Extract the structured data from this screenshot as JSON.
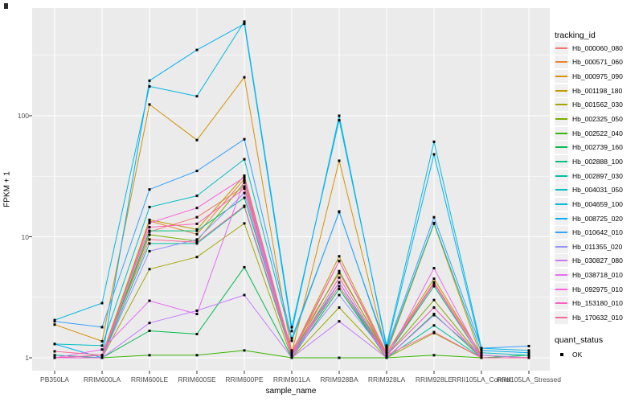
{
  "chart_data": {
    "type": "line",
    "title": "",
    "xlabel": "sample_name",
    "ylabel": "FPKM + 1",
    "y_scale": "log10",
    "y_ticks": [
      1,
      10,
      100
    ],
    "ylim_log": [
      -0.1,
      2.9
    ],
    "grid": "on",
    "panel_bg": "#EBEBEB",
    "grid_color": "#FFFFFF",
    "point_color": "#000000",
    "point_shape": "filled-square",
    "legend_position": "right",
    "categories": [
      "PB350LA",
      "RRIM600LA",
      "RRIM600LE",
      "RRIM600SE",
      "RRIM600PE",
      "RRIM901LA",
      "RRIM928BA",
      "RRIM928LA",
      "RRIM928LE",
      "RRII105LA_Control",
      "RRII105LA_Stressed"
    ],
    "series": [
      {
        "name": "Hb_000060_080",
        "color": "#F8766D",
        "values": [
          1.05,
          1.0,
          11,
          14.5,
          26,
          1.15,
          5.0,
          1.1,
          4.2,
          1.05,
          1.0
        ]
      },
      {
        "name": "Hb_000571_060",
        "color": "#EA8331",
        "values": [
          1.0,
          1.0,
          13.5,
          10.5,
          30,
          1.05,
          6.3,
          1.05,
          4.1,
          1.0,
          1.0
        ]
      },
      {
        "name": "Hb_000975_090",
        "color": "#D89000",
        "values": [
          1.88,
          1.37,
          124,
          63,
          208,
          1.1,
          42.5,
          1.1,
          12.8,
          1.0,
          1.0
        ]
      },
      {
        "name": "Hb_001198_180",
        "color": "#C09B00",
        "values": [
          1.0,
          1.05,
          13.8,
          11.5,
          32,
          1.1,
          6.9,
          1.1,
          4.5,
          1.05,
          1.0
        ]
      },
      {
        "name": "Hb_001562_030",
        "color": "#A3A500",
        "values": [
          1.0,
          1.0,
          5.4,
          6.8,
          12.9,
          1.0,
          2.6,
          1.0,
          1.6,
          1.0,
          1.0
        ]
      },
      {
        "name": "Hb_002325_050",
        "color": "#7CAE00",
        "values": [
          1.0,
          1.0,
          10.4,
          9.2,
          28,
          1.05,
          5.2,
          1.05,
          3.0,
          1.0,
          1.0
        ]
      },
      {
        "name": "Hb_002522_040",
        "color": "#39B600",
        "values": [
          1.0,
          1.0,
          1.05,
          1.05,
          1.15,
          1.0,
          1.0,
          1.0,
          1.05,
          1.0,
          1.0
        ]
      },
      {
        "name": "Hb_002739_160",
        "color": "#00BB4E",
        "values": [
          1.0,
          1.0,
          1.67,
          1.57,
          5.6,
          1.0,
          3.7,
          1.0,
          2.3,
          1.0,
          1.05
        ]
      },
      {
        "name": "Hb_002888_100",
        "color": "#00BF7D",
        "values": [
          1.0,
          1.0,
          11.2,
          11.2,
          21,
          1.1,
          4.2,
          1.05,
          3.9,
          1.0,
          1.0
        ]
      },
      {
        "name": "Hb_002897_030",
        "color": "#00C1A3",
        "values": [
          1.05,
          1.0,
          8.8,
          8.8,
          17.7,
          1.05,
          3.9,
          1.0,
          1.85,
          1.0,
          1.0
        ]
      },
      {
        "name": "Hb_004031_050",
        "color": "#00BFC4",
        "values": [
          1.3,
          1.26,
          17.6,
          21.8,
          43.7,
          1.38,
          16.2,
          1.15,
          13.0,
          1.1,
          1.05
        ]
      },
      {
        "name": "Hb_004659_100",
        "color": "#00BAE0",
        "values": [
          2.05,
          2.83,
          175,
          145,
          600,
          1.79,
          92,
          1.26,
          61,
          1.2,
          1.15
        ]
      },
      {
        "name": "Hb_008725_020",
        "color": "#00B0F6",
        "values": [
          1.3,
          1.0,
          195,
          350,
          575,
          1.66,
          100,
          1.2,
          48,
          1.15,
          1.1
        ]
      },
      {
        "name": "Hb_010642_010",
        "color": "#35A2FF",
        "values": [
          2.0,
          1.79,
          24.6,
          35,
          64,
          1.45,
          16.0,
          1.2,
          14.5,
          1.2,
          1.25
        ]
      },
      {
        "name": "Hb_011355_020",
        "color": "#9590FF",
        "values": [
          1.0,
          1.0,
          7.6,
          9.5,
          23,
          1.05,
          3.3,
          1.05,
          2.6,
          1.0,
          1.0
        ]
      },
      {
        "name": "Hb_030827_080",
        "color": "#C77CFF",
        "values": [
          1.0,
          1.0,
          1.94,
          2.45,
          3.3,
          1.0,
          2.0,
          1.0,
          2.25,
          1.05,
          1.0
        ]
      },
      {
        "name": "Hb_038718_010",
        "color": "#E76BF3",
        "values": [
          1.0,
          1.17,
          2.96,
          2.3,
          29,
          1.0,
          4.2,
          1.0,
          5.5,
          1.0,
          1.0
        ]
      },
      {
        "name": "Hb_092975_010",
        "color": "#FA62DB",
        "values": [
          1.0,
          1.0,
          13.0,
          17.3,
          31,
          1.1,
          6.3,
          1.1,
          4.1,
          1.0,
          1.0
        ]
      },
      {
        "name": "Hb_153180_010",
        "color": "#FF62BC",
        "values": [
          1.0,
          1.05,
          12.0,
          12.8,
          25,
          1.05,
          4.6,
          1.05,
          2.6,
          1.0,
          1.0
        ]
      },
      {
        "name": "Hb_170632_010",
        "color": "#FF6A98",
        "values": [
          1.13,
          1.05,
          9.5,
          9.0,
          18,
          1.1,
          3.9,
          1.05,
          1.63,
          1.0,
          1.0
        ]
      }
    ],
    "legend": {
      "tracking_title": "tracking_id",
      "quant_title": "quant_status",
      "quant_items": [
        {
          "label": "OK",
          "color": "#000000"
        }
      ]
    }
  }
}
